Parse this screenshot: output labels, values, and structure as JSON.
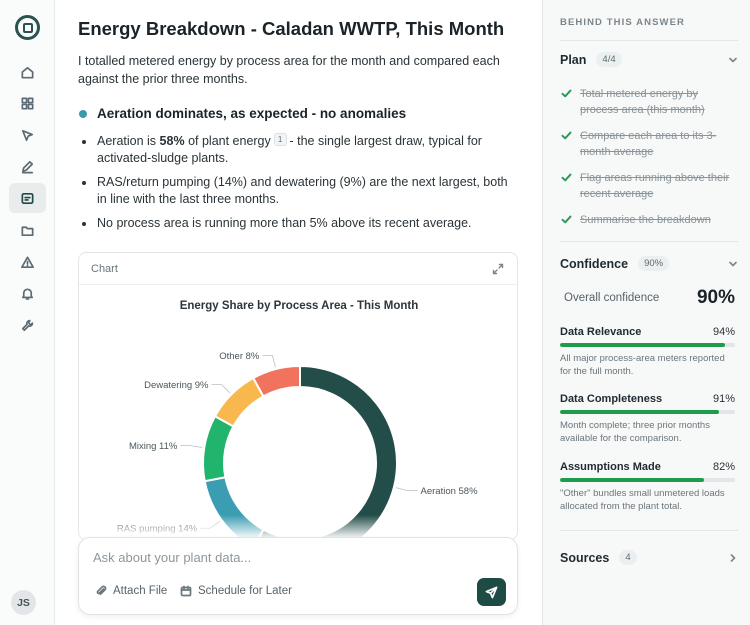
{
  "nav": {
    "items": [
      {
        "id": "home",
        "icon": "home-icon"
      },
      {
        "id": "dashboard",
        "icon": "grid-icon"
      },
      {
        "id": "navigate",
        "icon": "cursor-arrow-icon"
      },
      {
        "id": "edit",
        "icon": "pencil-icon"
      },
      {
        "id": "chat",
        "icon": "chat-icon",
        "active": true
      },
      {
        "id": "files",
        "icon": "folder-icon"
      },
      {
        "id": "alerts",
        "icon": "warning-triangle-icon"
      },
      {
        "id": "notifications",
        "icon": "bell-icon"
      },
      {
        "id": "tools",
        "icon": "wrench-icon"
      }
    ],
    "user_initials": "JS"
  },
  "answer": {
    "title": "Energy Breakdown - Caladan WWTP, This Month",
    "intro": "I totalled metered energy by process area for the month and compared each against the prior three months.",
    "finding": "Aeration dominates, as expected - no anomalies",
    "bullets": {
      "b1_pre": "Aeration is",
      "b1_bold": "58%",
      "b1_mid": "of plant energy",
      "b1_cite": "1",
      "b1_post": "- the single largest draw, typical for activated-sludge plants.",
      "b2": "RAS/return pumping (14%) and dewatering (9%) are the next largest, both in line with the last three months.",
      "b3": "No process area is running more than 5% above its recent average."
    }
  },
  "chart_card": {
    "label": "Chart"
  },
  "chart_data": {
    "type": "pie",
    "title": "Energy Share by Process Area - This Month",
    "donut": true,
    "unit": "%",
    "slices": [
      {
        "label": "Aeration",
        "value": 58,
        "color": "#234d49"
      },
      {
        "label": "RAS pumping",
        "value": 14,
        "color": "#3b9db2"
      },
      {
        "label": "Mixing",
        "value": 11,
        "color": "#21b46c"
      },
      {
        "label": "Dewatering",
        "value": 9,
        "color": "#f8b84e"
      },
      {
        "label": "Other",
        "value": 8,
        "color": "#f2735d"
      }
    ]
  },
  "composer": {
    "placeholder": "Ask about your plant data...",
    "attach_label": "Attach File",
    "schedule_label": "Schedule for Later"
  },
  "panel": {
    "header": "BEHIND THIS ANSWER",
    "plan": {
      "title": "Plan",
      "count": "4/4",
      "steps": [
        "Total metered energy by process area (this month)",
        "Compare each area to its 3-month average",
        "Flag areas running above their recent average",
        "Summarise the breakdown"
      ]
    },
    "confidence": {
      "title": "Confidence",
      "badge": "90%",
      "overall_label": "Overall confidence",
      "overall_value": "90%",
      "metrics": [
        {
          "name": "Data Relevance",
          "pct_text": "94%",
          "value": 0.94,
          "note": "All major process-area meters reported for the full month."
        },
        {
          "name": "Data Completeness",
          "pct_text": "91%",
          "value": 0.91,
          "note": "Month complete; three prior months available for the comparison."
        },
        {
          "name": "Assumptions Made",
          "pct_text": "82%",
          "value": 0.82,
          "note": "\"Other\" bundles small unmetered loads allocated from the plant total."
        }
      ]
    },
    "sources": {
      "title": "Sources",
      "count": "4"
    }
  }
}
